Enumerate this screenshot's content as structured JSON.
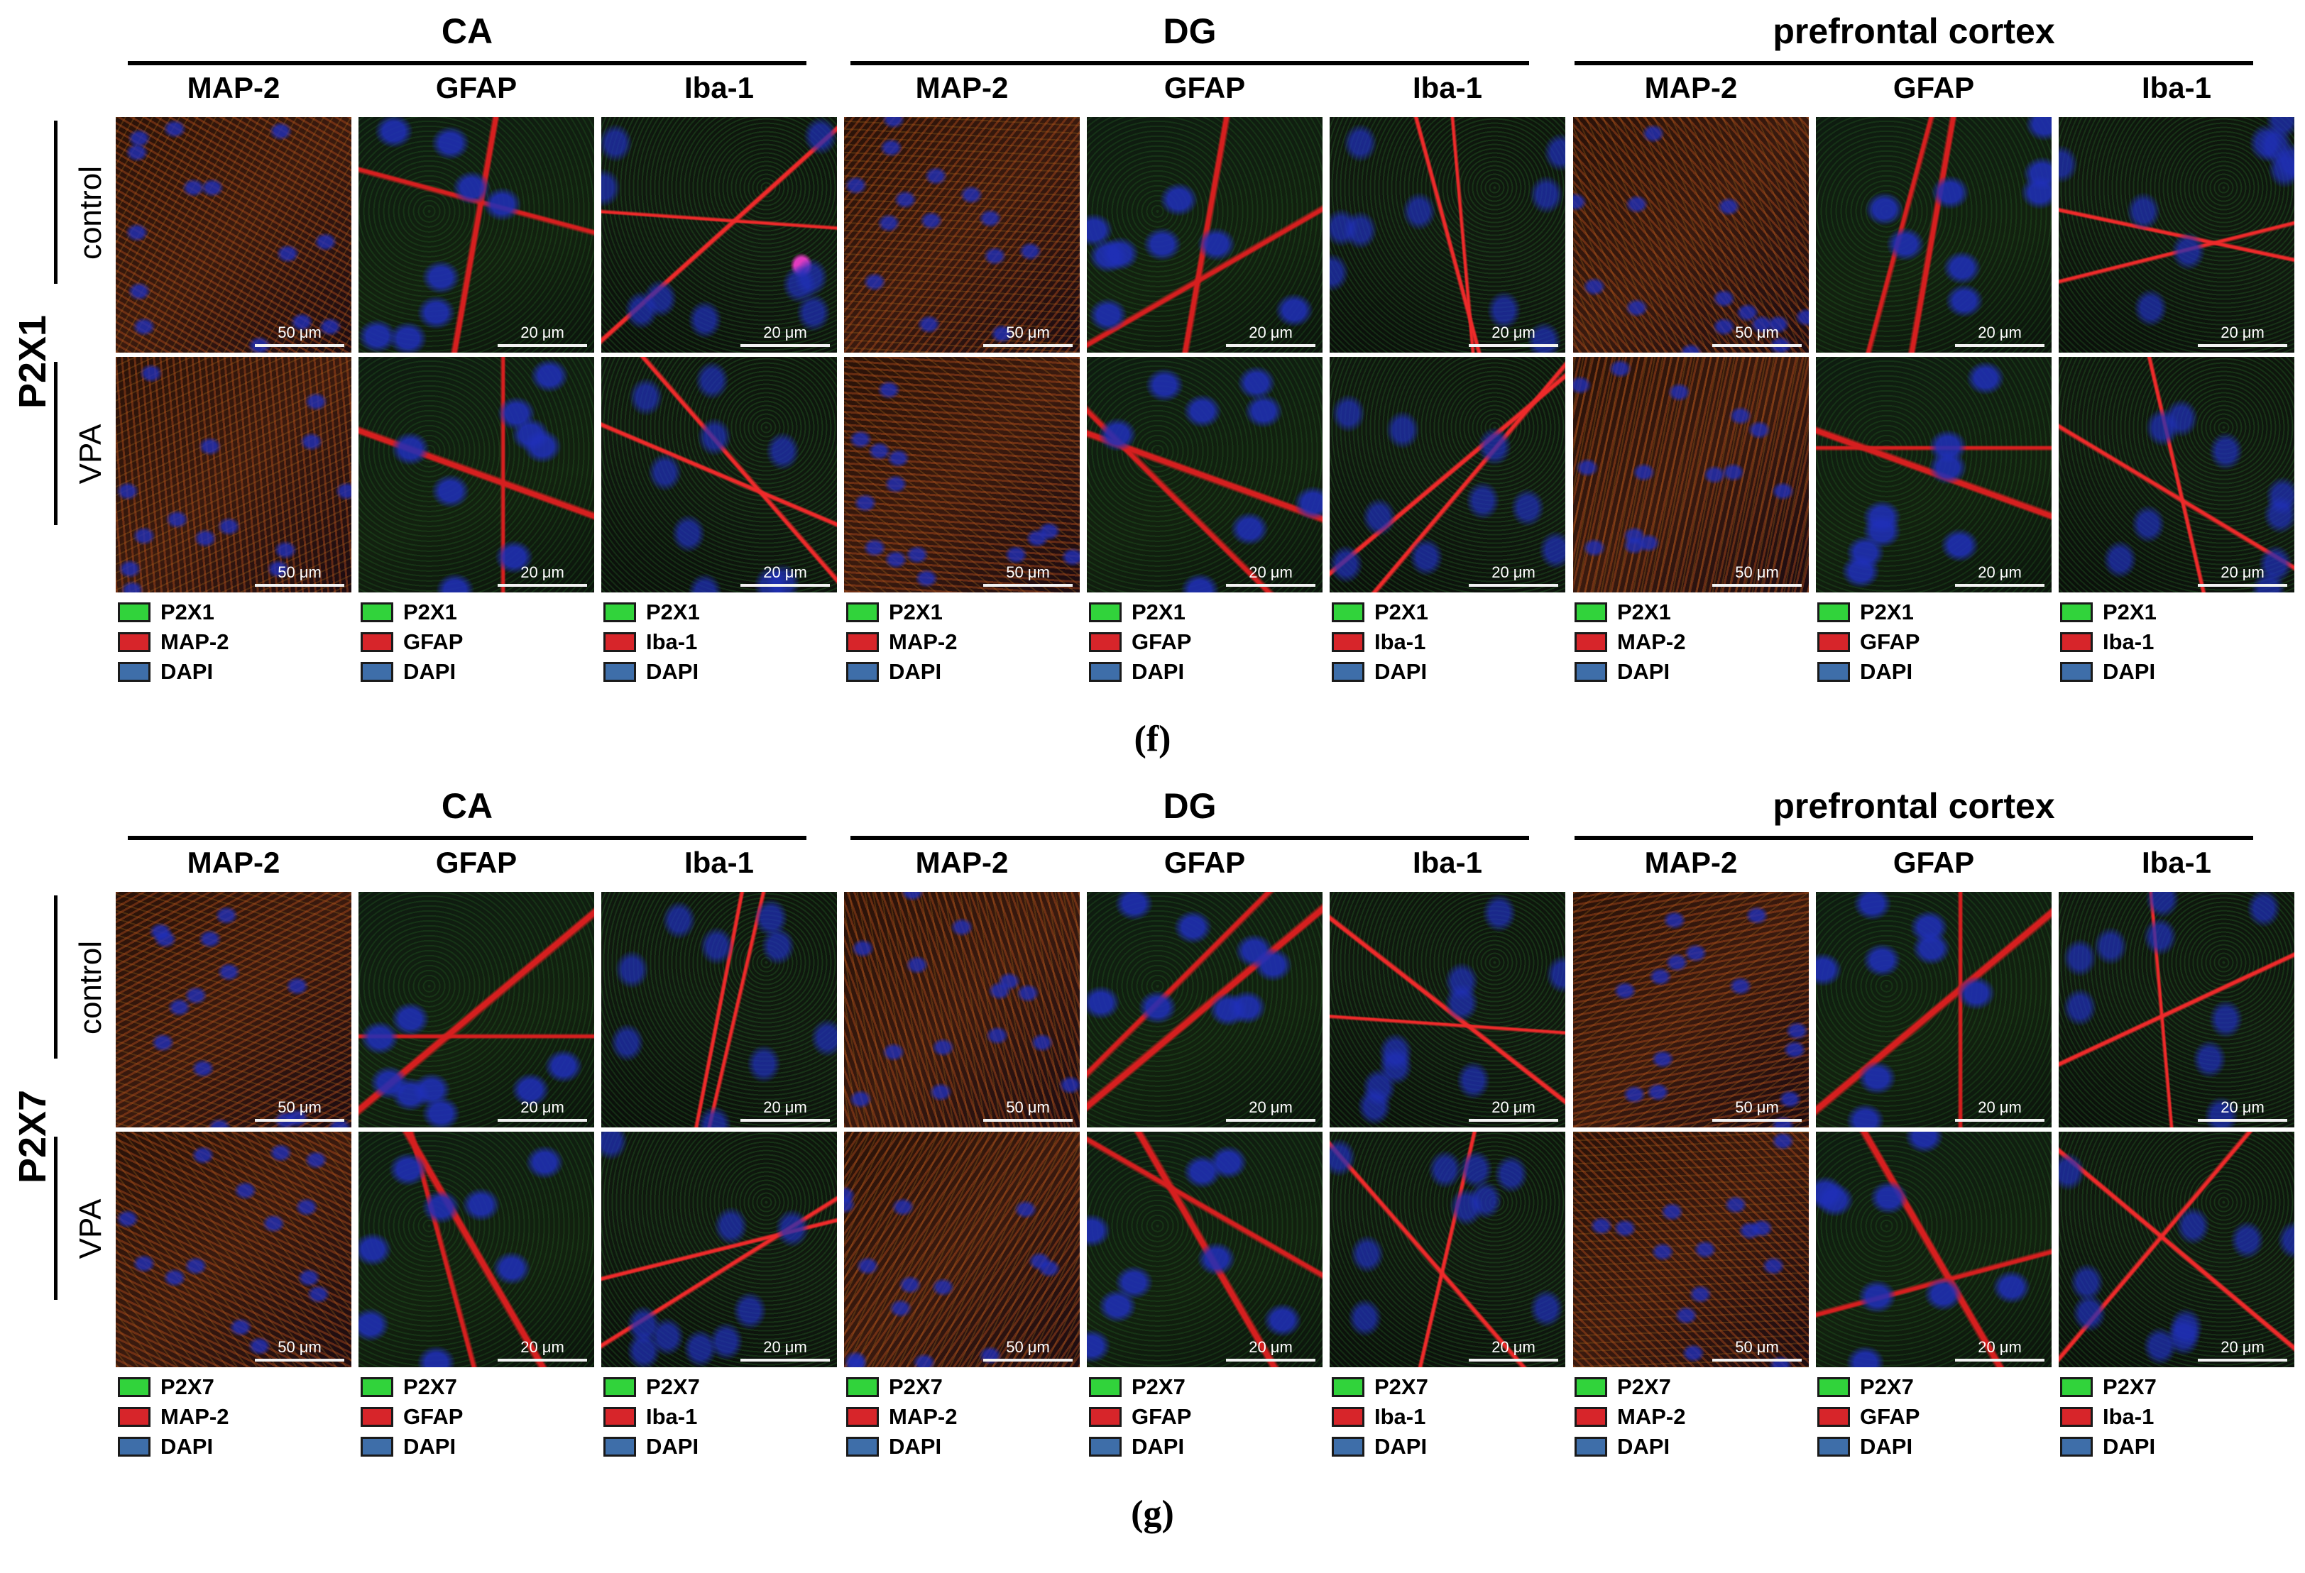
{
  "colors": {
    "green": "#31d33b",
    "red": "#d7252a",
    "blue": "#3e6ea9",
    "dapi": "#1f2fb8",
    "neuron": "#c0521e",
    "astro": "#d61f1f",
    "micro": "#ee2a2a"
  },
  "regions": [
    "CA",
    "DG",
    "prefrontal cortex"
  ],
  "markers": [
    "MAP-2",
    "GFAP",
    "Iba-1"
  ],
  "conditions": [
    "control",
    "VPA"
  ],
  "scale_bars": [
    "50 μm",
    "20 μm",
    "20 μm"
  ],
  "figures": [
    {
      "caption": "(f)",
      "receptor": "P2X1",
      "legends": [
        [
          "P2X1",
          "MAP-2",
          "DAPI"
        ],
        [
          "P2X1",
          "GFAP",
          "DAPI"
        ],
        [
          "P2X1",
          "Iba-1",
          "DAPI"
        ]
      ]
    },
    {
      "caption": "(g)",
      "receptor": "P2X7",
      "legends": [
        [
          "P2X7",
          "MAP-2",
          "DAPI"
        ],
        [
          "P2X7",
          "GFAP",
          "DAPI"
        ],
        [
          "P2X7",
          "Iba-1",
          "DAPI"
        ]
      ]
    }
  ]
}
